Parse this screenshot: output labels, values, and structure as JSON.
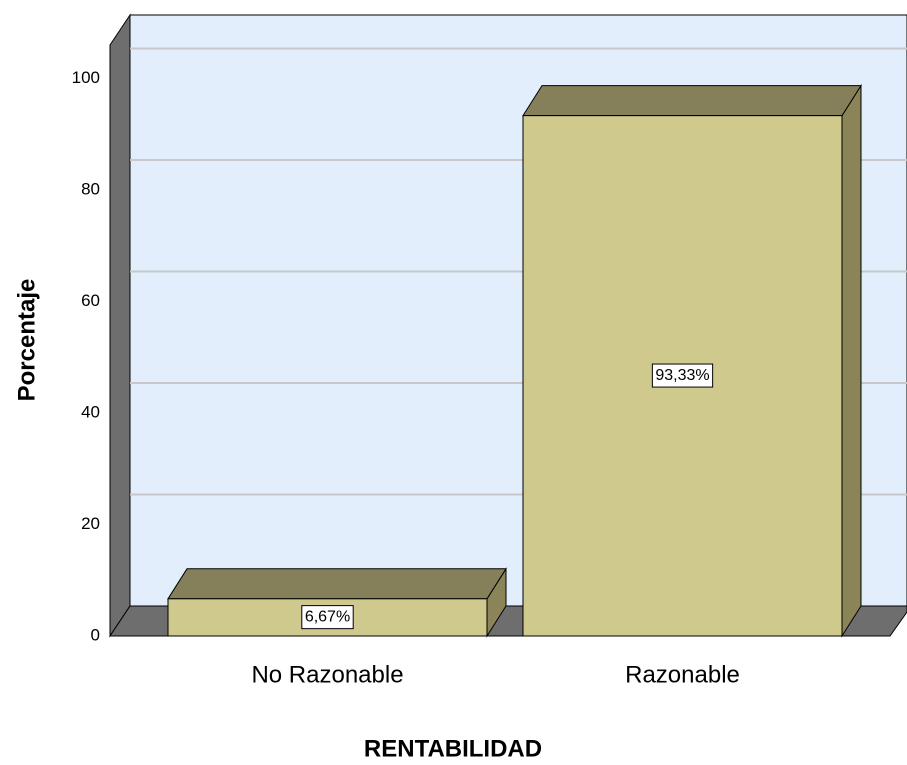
{
  "chart_data": {
    "type": "bar3d",
    "categories": [
      "No Razonable",
      "Razonable"
    ],
    "values": [
      6.67,
      93.33
    ],
    "value_labels": [
      "6,67%",
      "93,33%"
    ],
    "color": "#d0c98e",
    "x_label": "RENTABILIDAD",
    "y_label": "Porcentaje",
    "ylim": [
      0,
      106
    ],
    "yticks": [
      0,
      20,
      40,
      60,
      80,
      100
    ],
    "grid": true
  }
}
